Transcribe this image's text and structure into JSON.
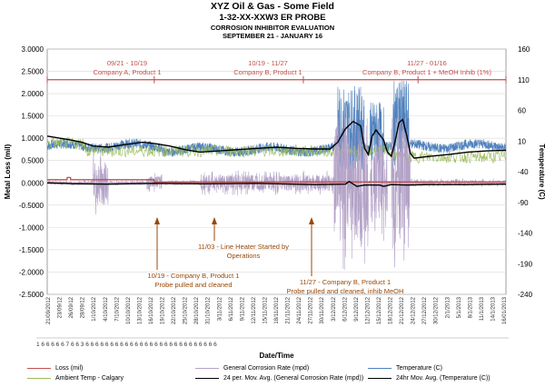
{
  "header": {
    "title": "XYZ Oil & Gas - Some Field",
    "subtitle": "1-32-XX-XXW3 ER PROBE",
    "subtitle2": "CORROSION INHIBITOR EVALUATION",
    "subtitle3": "SEPTEMBER 21 - JANUARY 16"
  },
  "chart_data": {
    "type": "line",
    "xlabel": "Date/Time",
    "ylabel_left": "Metal Loss (mil)",
    "ylabel_right": "Temperature (C)",
    "ylim_left": [
      -2.5,
      3.0
    ],
    "ylim_right": [
      -240,
      160
    ],
    "yticks_left": [
      "3.0000",
      "2.5000",
      "2.0000",
      "1.5000",
      "1.0000",
      "0.5000",
      "0.0000",
      "-0.5000",
      "-1.0000",
      "-1.5000",
      "-2.0000",
      "-2.5000"
    ],
    "yticks_right": [
      "160",
      "110",
      "60",
      "10",
      "-40",
      "-90",
      "-140",
      "-190",
      "-240"
    ],
    "x_tick_labels": [
      "21/09/2012",
      "23/09/12",
      "26/09/12",
      "28/09/12",
      "1/10/2012",
      "4/10/2012",
      "7/10/2012",
      "10/10/2012",
      "13/10/2012",
      "16/10/2012",
      "19/10/2012",
      "22/10/2012",
      "25/10/2012",
      "28/10/2012",
      "31/10/2012",
      "3/11/2012",
      "6/11/2012",
      "9/11/2012",
      "12/11/2012",
      "15/11/2012",
      "18/11/2012",
      "21/11/2012",
      "24/11/2012",
      "27/11/2012",
      "30/11/2012",
      "3/12/2012",
      "6/12/2012",
      "9/12/2012",
      "12/12/2012",
      "15/12/2012",
      "18/12/2012",
      "21/12/2012",
      "24/12/2012",
      "27/12/2012",
      "30/12/2012",
      "2/1/2013",
      "5/1/2013",
      "8/1/2013",
      "11/1/2013",
      "14/1/2013",
      "16/01/2013"
    ],
    "x_row2_text": "1 6     6 6 6     6 7 6 6   3 6 6           6 6 6 6 6 6         6 6 6     6 6 6 6 6 6 6 6         6 6 6 6 6 6 6 6",
    "grid": true,
    "annotations_top": [
      {
        "text": "09/21 - 10/19",
        "text2": "Company A, Product 1",
        "color": "#c0504d"
      },
      {
        "text": "10/19 - 11/27",
        "text2": "Company B, Product 1",
        "color": "#c0504d"
      },
      {
        "text": "11/27 - 01/16",
        "text2": "Company B, Product 1 + MeOH Inhib (1%)",
        "color": "#c0504d"
      }
    ],
    "annotations_bottom": [
      {
        "text": "11/03 - Line Heater Started by",
        "text2": "Operations",
        "color": "#984807"
      },
      {
        "text": "10/19 - Company B, Product 1",
        "text2": "Probe pulled and cleaned",
        "color": "#984807"
      },
      {
        "text": "11/27 - Company B, Product 1",
        "text2": "Probe pulled and cleaned, inhib MeOH",
        "color": "#984807"
      }
    ],
    "series": [
      {
        "name": "Loss (mil)",
        "axis": "left",
        "color": "#c0504d",
        "points": [
          [
            0,
            0.07
          ],
          [
            5.2,
            0.07
          ],
          [
            5.2,
            0.12
          ],
          [
            6.1,
            0.12
          ],
          [
            6.1,
            0.07
          ],
          [
            28,
            0.07
          ],
          [
            28,
            0.02
          ],
          [
            120,
            0.02
          ]
        ]
      },
      {
        "name": "Ambient Temp - Calgary",
        "axis": "right",
        "color": "#9bbb59",
        "style": "noise_green"
      },
      {
        "name": "General Corrosion Rate (mpd)",
        "axis": "left",
        "color": "#b3a2c7",
        "style": "noise_purple"
      },
      {
        "name": "24 per. Mov. Avg. (General Corrosion Rate (mpd))",
        "axis": "left",
        "color": "#000000",
        "points": [
          [
            0,
            0.0
          ],
          [
            8,
            -0.02
          ],
          [
            16,
            -0.03
          ],
          [
            28,
            -0.01
          ],
          [
            40,
            -0.02
          ],
          [
            55,
            -0.01
          ],
          [
            70,
            -0.04
          ],
          [
            78,
            -0.03
          ],
          [
            79,
            0.03
          ],
          [
            81,
            -0.08
          ],
          [
            83,
            -0.05
          ],
          [
            87,
            -0.05
          ],
          [
            88,
            -0.08
          ],
          [
            90,
            -0.04
          ],
          [
            94,
            -0.05
          ],
          [
            100,
            -0.04
          ],
          [
            110,
            -0.04
          ],
          [
            120,
            -0.03
          ]
        ]
      },
      {
        "name": "Temperature (C)",
        "axis": "right",
        "color": "#4f81bd",
        "style": "noise_blue"
      },
      {
        "name": "24hr Mov. Avg. (Temperature (C))",
        "axis": "right",
        "color": "#000000",
        "points": [
          [
            0,
            18
          ],
          [
            3,
            15
          ],
          [
            6,
            12
          ],
          [
            9,
            8
          ],
          [
            12,
            2
          ],
          [
            16,
            0
          ],
          [
            20,
            4
          ],
          [
            25,
            8
          ],
          [
            28,
            6
          ],
          [
            32,
            2
          ],
          [
            36,
            -4
          ],
          [
            40,
            -8
          ],
          [
            45,
            -6
          ],
          [
            50,
            -4
          ],
          [
            55,
            -2
          ],
          [
            60,
            0
          ],
          [
            65,
            -2
          ],
          [
            70,
            -3
          ],
          [
            74,
            -3
          ],
          [
            76,
            8
          ],
          [
            78,
            30
          ],
          [
            80,
            42
          ],
          [
            82,
            35
          ],
          [
            83,
            -2
          ],
          [
            84,
            -12
          ],
          [
            85,
            18
          ],
          [
            86,
            28
          ],
          [
            88,
            12
          ],
          [
            89,
            -8
          ],
          [
            90,
            -15
          ],
          [
            91,
            10
          ],
          [
            92,
            40
          ],
          [
            93,
            45
          ],
          [
            94,
            20
          ],
          [
            95,
            -10
          ],
          [
            96,
            -18
          ],
          [
            100,
            -15
          ],
          [
            105,
            -12
          ],
          [
            110,
            -8
          ],
          [
            115,
            -6
          ],
          [
            120,
            -5
          ]
        ]
      }
    ]
  },
  "legend": [
    {
      "label": "Loss (mil)",
      "color": "#c0504d"
    },
    {
      "label": "General Corrosion Rate (mpd)",
      "color": "#b3a2c7"
    },
    {
      "label": "Temperature (C)",
      "color": "#4f81bd"
    },
    {
      "label": "Ambient Temp - Calgary",
      "color": "#9bbb59"
    },
    {
      "label": "24 per. Mov. Avg. (General Corrosion Rate (mpd))",
      "color": "#000000"
    },
    {
      "label": "24hr Mov. Avg. (Temperature (C))",
      "color": "#000000"
    }
  ]
}
